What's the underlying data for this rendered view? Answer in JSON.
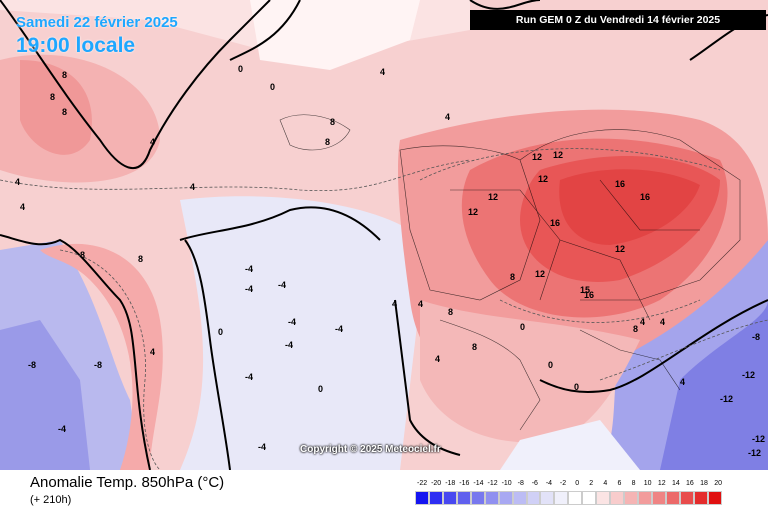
{
  "header": {
    "date_label": "Samedi 22 février 2025",
    "time_label": "19:00 locale",
    "run_label": "Run GEM 0 Z du Vendredi 14 février 2025"
  },
  "map": {
    "copyright": "Copyright © 2025 Meteociel.fr",
    "contour_labels": [
      "8",
      "8",
      "8",
      "4",
      "4",
      "4",
      "4",
      "0",
      "0",
      "4",
      "8",
      "8",
      "4",
      "12",
      "12",
      "12",
      "12",
      "16",
      "16",
      "16",
      "12",
      "12",
      "4",
      "4",
      "8",
      "8",
      "8",
      "4",
      "0",
      "0",
      "-4",
      "-4",
      "-4",
      "-4",
      "-4",
      "-4",
      "-4",
      "-8",
      "-8",
      "-4",
      "-4",
      "0",
      "0",
      "0",
      "4",
      "4",
      "4",
      "8",
      "8",
      "12",
      "15",
      "16",
      "8",
      "4",
      "-8",
      "-12",
      "-12",
      "-12",
      "-12"
    ],
    "colors": {
      "warm_light": "#f7c4c4",
      "warm_mid": "#f59a9a",
      "warm_strong": "#ef6b6b",
      "cool_light": "#dcdcf5",
      "cool_mid": "#a9a9ee",
      "coast": "#000000"
    }
  },
  "footer": {
    "product_label": "Anomalie Temp. 850hPa (°C)",
    "lead_label": "(+ 210h)"
  },
  "legend": {
    "ticks": [
      "-22",
      "-20",
      "-18",
      "-16",
      "-14",
      "-12",
      "-10",
      "-8",
      "-6",
      "-4",
      "-2",
      "0",
      "2",
      "4",
      "6",
      "8",
      "10",
      "12",
      "14",
      "16",
      "18",
      "20"
    ],
    "colors": [
      "#1414f0",
      "#2e2ef2",
      "#4848f0",
      "#6060ee",
      "#7878ee",
      "#9090f0",
      "#a8a8f2",
      "#bcbcf4",
      "#d0d0f6",
      "#e2e2f8",
      "#f0f0fb",
      "#ffffff",
      "#ffffff",
      "#fbe4e4",
      "#f8cccc",
      "#f5b4b4",
      "#f29c9c",
      "#ef8484",
      "#ec6a6a",
      "#e84c4c",
      "#e42c2c",
      "#e01010"
    ]
  }
}
